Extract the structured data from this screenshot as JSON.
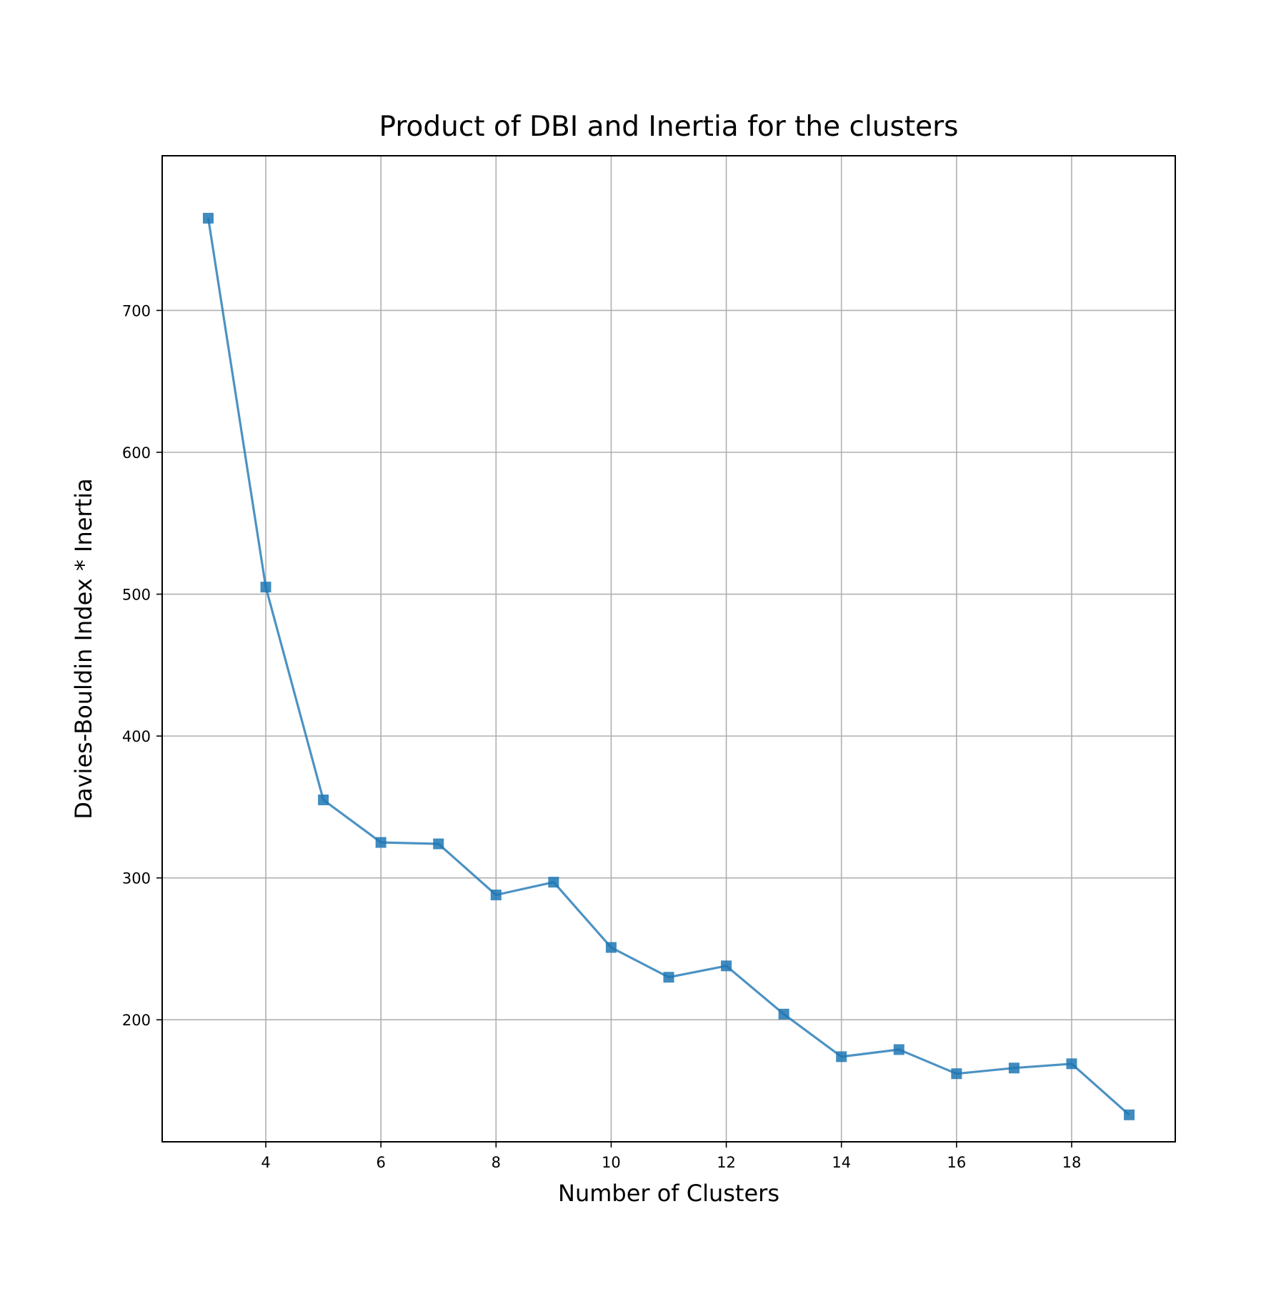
{
  "chart_data": {
    "type": "line",
    "title": "Product of DBI and Inertia for the clusters",
    "xlabel": "Number of Clusters",
    "ylabel": "Davies-Bouldin Index * Inertia",
    "x": [
      3,
      4,
      5,
      6,
      7,
      8,
      9,
      10,
      11,
      12,
      13,
      14,
      15,
      16,
      17,
      18,
      19
    ],
    "series": [
      {
        "values": [
          765,
          505,
          355,
          325,
          324,
          288,
          297,
          251,
          230,
          238,
          204,
          174,
          179,
          162,
          166,
          169,
          133
        ],
        "color": "#1f77b4",
        "marker": "square"
      }
    ],
    "xlim": [
      2.2,
      19.8
    ],
    "ylim": [
      114,
      809
    ],
    "xticks": [
      4,
      6,
      8,
      10,
      12,
      14,
      16,
      18
    ],
    "yticks": [
      200,
      300,
      400,
      500,
      600,
      700
    ],
    "grid": true,
    "legend": false
  }
}
